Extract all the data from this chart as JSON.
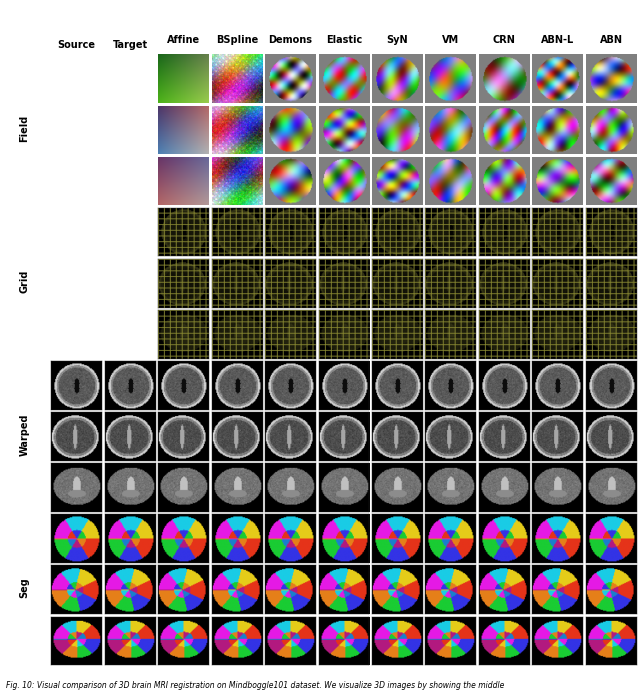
{
  "title": "Fig. 10: Visual comparison of 3D brain MRI registration on Mindboggle101 dataset. We visualize 3D images by showing the middle",
  "col_headers": [
    "Affine",
    "BSpline",
    "Demons",
    "Elastic",
    "SyN",
    "VM",
    "CRN",
    "ABN-L",
    "ABN"
  ],
  "row_group_labels": [
    "Field",
    "Grid",
    "Warped",
    "Seg"
  ],
  "left_labels": [
    "Source",
    "Target"
  ],
  "background_color": "#ffffff",
  "text_color": "#000000",
  "caption_fontsize": 5.5,
  "header_fontsize": 7,
  "label_fontsize": 7,
  "n_field_rows": 3,
  "n_grid_rows": 3,
  "n_warped_rows": 3,
  "n_seg_rows": 3
}
